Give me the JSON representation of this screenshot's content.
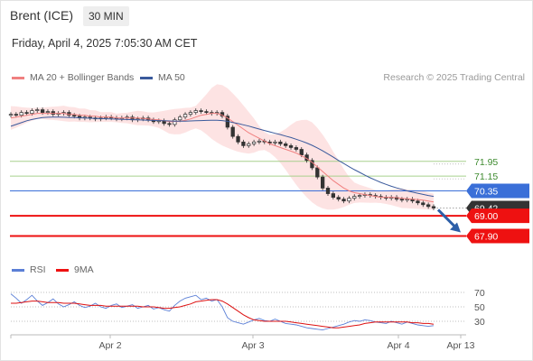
{
  "header": {
    "instrument": "Brent (ICE)",
    "timeframe": "30 MIN",
    "datetime": "Friday, April 4, 2025 7:05:30 AM CET"
  },
  "legend": {
    "ma20": "MA 20 + Bollinger Bands",
    "ma50": "MA 50",
    "rsi": "RSI",
    "ma9": "9MA",
    "credit": "Research © 2025 Trading Central"
  },
  "colors": {
    "ma20": "#f08080",
    "band_fill": "#fcd9d9",
    "ma50": "#3a5a9c",
    "resistance": "#a8d08d",
    "pivot": "#3a6fd8",
    "support": "#ee1111",
    "rsi": "#5b7fd6",
    "rsi_ma": "#dd1111",
    "arrow": "#2d5fa8"
  },
  "chart_data": [
    {
      "type": "line",
      "name": "price-panel",
      "ylim": [
        66.9,
        76.0
      ],
      "x_ticks": [
        "Apr 2",
        "Apr 3",
        "Apr 4",
        "Apr 13"
      ],
      "levels": [
        {
          "value": 71.95,
          "label": "71.95",
          "kind": "resistance"
        },
        {
          "value": 71.15,
          "label": "71.15",
          "kind": "resistance"
        },
        {
          "value": 70.35,
          "label": "70.35",
          "kind": "pivot"
        },
        {
          "value": 69.42,
          "label": "69.42",
          "kind": "last"
        },
        {
          "value": 69.0,
          "label": "69.00",
          "kind": "support"
        },
        {
          "value": 67.9,
          "label": "67.90",
          "kind": "support"
        }
      ],
      "close": [
        74.5,
        74.45,
        74.6,
        74.55,
        74.7,
        74.75,
        74.6,
        74.65,
        74.5,
        74.55,
        74.6,
        74.45,
        74.4,
        74.3,
        74.35,
        74.3,
        74.25,
        74.3,
        74.35,
        74.3,
        74.25,
        74.3,
        74.35,
        74.2,
        74.25,
        74.3,
        74.2,
        74.1,
        74.15,
        74.0,
        73.95,
        74.2,
        74.35,
        74.5,
        74.6,
        74.7,
        74.65,
        74.6,
        74.55,
        74.6,
        74.4,
        73.8,
        73.3,
        73.0,
        72.8,
        72.9,
        73.0,
        73.05,
        73.0,
        72.95,
        73.0,
        72.9,
        72.8,
        72.7,
        72.6,
        72.3,
        72.0,
        71.6,
        71.1,
        70.5,
        70.2,
        70.0,
        69.9,
        69.8,
        69.95,
        70.05,
        70.1,
        70.15,
        70.1,
        70.05,
        70.0,
        69.95,
        70.0,
        69.9,
        69.85,
        69.9,
        69.8,
        69.7,
        69.6,
        69.5,
        69.42
      ],
      "ma20": [
        74.3,
        74.35,
        74.4,
        74.45,
        74.5,
        74.55,
        74.55,
        74.55,
        74.55,
        74.55,
        74.55,
        74.5,
        74.5,
        74.45,
        74.45,
        74.4,
        74.4,
        74.35,
        74.35,
        74.35,
        74.3,
        74.3,
        74.3,
        74.3,
        74.3,
        74.28,
        74.25,
        74.22,
        74.2,
        74.15,
        74.1,
        74.1,
        74.12,
        74.18,
        74.25,
        74.35,
        74.45,
        74.5,
        74.55,
        74.55,
        74.45,
        74.3,
        74.1,
        73.9,
        73.7,
        73.5,
        73.35,
        73.2,
        73.05,
        72.9,
        72.8,
        72.7,
        72.6,
        72.5,
        72.4,
        72.25,
        72.1,
        71.9,
        71.65,
        71.4,
        71.15,
        70.9,
        70.7,
        70.5,
        70.35,
        70.25,
        70.2,
        70.15,
        70.1,
        70.05,
        70.0,
        70.0,
        70.0,
        69.98,
        69.95,
        69.92,
        69.9,
        69.88,
        69.85,
        69.8,
        69.75
      ],
      "ma50": [
        73.85,
        73.95,
        74.05,
        74.15,
        74.22,
        74.28,
        74.32,
        74.34,
        74.35,
        74.35,
        74.34,
        74.33,
        74.32,
        74.31,
        74.3,
        74.29,
        74.28,
        74.27,
        74.26,
        74.25,
        74.24,
        74.23,
        74.22,
        74.21,
        74.2,
        74.19,
        74.18,
        74.17,
        74.16,
        74.15,
        74.14,
        74.13,
        74.13,
        74.13,
        74.14,
        74.15,
        74.16,
        74.17,
        74.18,
        74.18,
        74.16,
        74.12,
        74.06,
        74.0,
        73.93,
        73.86,
        73.78,
        73.7,
        73.62,
        73.55,
        73.47,
        73.4,
        73.32,
        73.24,
        73.15,
        73.05,
        72.94,
        72.82,
        72.68,
        72.52,
        72.35,
        72.18,
        72.0,
        71.83,
        71.66,
        71.5,
        71.35,
        71.2,
        71.06,
        70.93,
        70.81,
        70.7,
        70.6,
        70.51,
        70.43,
        70.35,
        70.28,
        70.22,
        70.16,
        70.1,
        70.05
      ]
    },
    {
      "type": "line",
      "name": "rsi-panel",
      "ylim": [
        15,
        85
      ],
      "levels": [
        70,
        50,
        30
      ],
      "rsi": [
        68,
        62,
        55,
        60,
        66,
        58,
        52,
        56,
        61,
        54,
        50,
        53,
        57,
        52,
        49,
        51,
        55,
        50,
        48,
        52,
        54,
        49,
        51,
        53,
        48,
        50,
        52,
        47,
        49,
        46,
        44,
        52,
        58,
        62,
        64,
        66,
        60,
        62,
        58,
        60,
        50,
        35,
        30,
        28,
        26,
        29,
        32,
        34,
        31,
        30,
        33,
        30,
        27,
        26,
        25,
        23,
        21,
        20,
        19,
        18,
        20,
        22,
        24,
        26,
        29,
        31,
        30,
        32,
        31,
        29,
        28,
        27,
        30,
        28,
        26,
        29,
        27,
        25,
        24,
        23,
        24
      ],
      "rsi_ma": [
        55,
        55,
        56,
        57,
        58,
        58,
        57,
        56,
        56,
        56,
        55,
        55,
        55,
        54,
        53,
        52,
        52,
        52,
        51,
        51,
        51,
        51,
        51,
        51,
        51,
        50,
        50,
        50,
        49,
        48,
        48,
        49,
        50,
        52,
        54,
        57,
        58,
        59,
        60,
        60,
        58,
        54,
        49,
        44,
        39,
        35,
        32,
        31,
        30,
        30,
        30,
        30,
        30,
        29,
        28,
        27,
        26,
        25,
        24,
        23,
        22,
        21,
        21,
        22,
        23,
        24,
        25,
        27,
        28,
        29,
        29,
        29,
        29,
        29,
        29,
        29,
        28,
        28,
        27,
        27,
        26
      ]
    }
  ]
}
